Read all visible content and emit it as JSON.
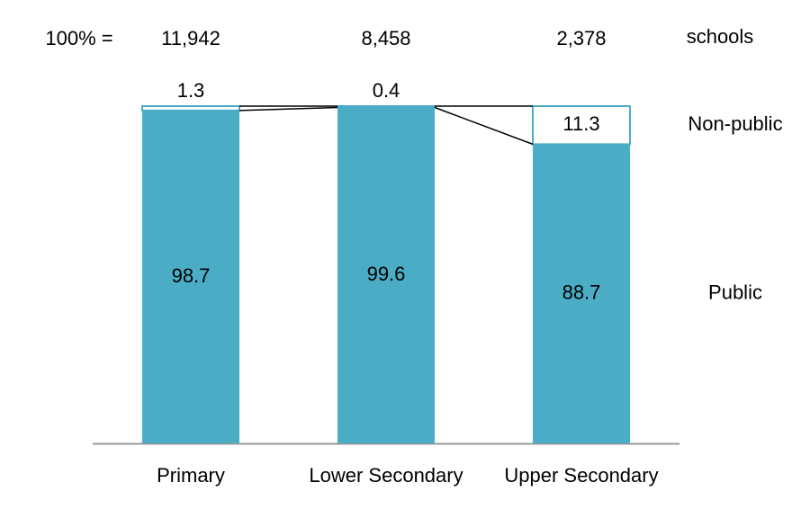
{
  "chart_data": {
    "type": "stacked_bar",
    "categories": [
      "Primary",
      "Lower Secondary",
      "Upper Secondary"
    ],
    "series": [
      {
        "name": "Public",
        "color": "#4bacc6",
        "values": [
          98.7,
          99.6,
          88.7
        ]
      },
      {
        "name": "Non-public",
        "color": "#ffffff",
        "values": [
          1.3,
          0.4,
          11.3
        ]
      }
    ],
    "totals": {
      "label": "100% =",
      "values": [
        11942,
        8458,
        2378
      ],
      "value_labels": [
        "11,942",
        "8,458",
        "2,378"
      ],
      "unit": "schools"
    },
    "ylim": [
      0,
      100
    ]
  }
}
